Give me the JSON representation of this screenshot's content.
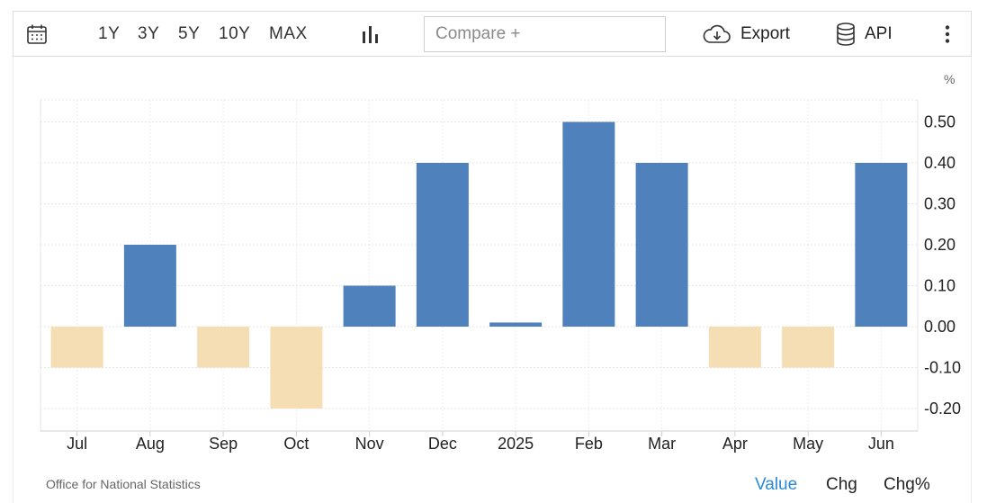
{
  "toolbar": {
    "ranges": [
      "1Y",
      "3Y",
      "5Y",
      "10Y",
      "MAX"
    ],
    "compare_placeholder": "Compare +",
    "export_label": "Export",
    "api_label": "API"
  },
  "footer": {
    "source": "Office for National Statistics",
    "modes": [
      "Value",
      "Chg",
      "Chg%"
    ],
    "active_mode": "Value"
  },
  "colors": {
    "positive": "#4f81bd",
    "negative": "#f5deb3",
    "active_mode": "#2b8ad8"
  },
  "chart_data": {
    "type": "bar",
    "unit": "%",
    "categories": [
      "Jul",
      "Aug",
      "Sep",
      "Oct",
      "Nov",
      "Dec",
      "2025",
      "Feb",
      "Mar",
      "Apr",
      "May",
      "Jun"
    ],
    "values": [
      -0.1,
      0.2,
      -0.1,
      -0.2,
      0.1,
      0.4,
      0.01,
      0.5,
      0.4,
      -0.1,
      -0.1,
      0.4
    ],
    "yticks": [
      "0.50",
      "0.40",
      "0.30",
      "0.20",
      "0.10",
      "0.00",
      "-0.10",
      "-0.20"
    ],
    "ylim": [
      -0.25,
      0.55
    ],
    "grid": true,
    "axis_position": "right"
  }
}
